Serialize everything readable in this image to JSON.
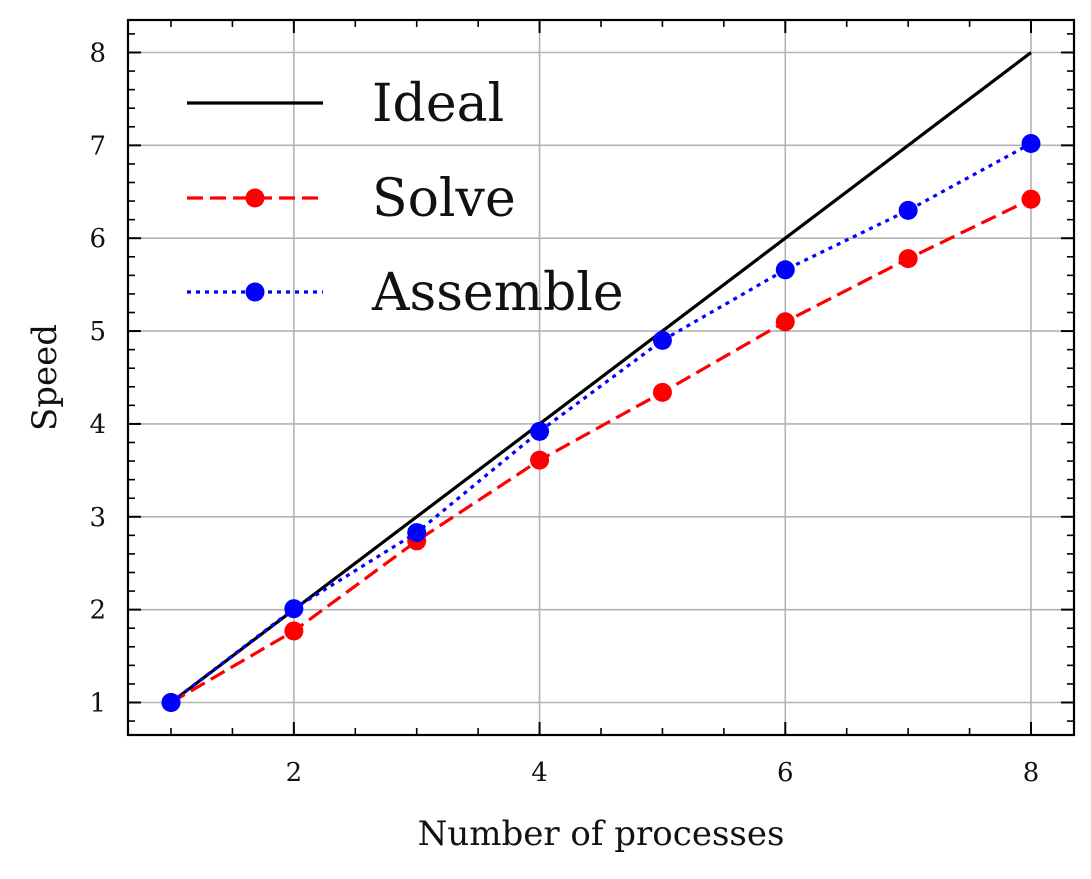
{
  "chart_data": {
    "type": "line",
    "title": "",
    "xlabel": "Number of processes",
    "ylabel": "Speed",
    "xlim": [
      0.65,
      8.35
    ],
    "ylim": [
      0.65,
      8.35
    ],
    "x_ticks": [
      2,
      4,
      6,
      8
    ],
    "y_ticks": [
      1,
      2,
      3,
      4,
      5,
      6,
      7,
      8
    ],
    "grid": true,
    "legend_position": "top-left",
    "series": [
      {
        "name": "Ideal",
        "color": "#000000",
        "line_style": "solid",
        "marker": "none",
        "x": [
          1,
          8
        ],
        "y": [
          1,
          8
        ]
      },
      {
        "name": "Solve",
        "color": "#ff0000",
        "line_style": "dashed",
        "marker": "circle",
        "x": [
          1,
          2,
          3,
          4,
          5,
          6,
          7,
          8
        ],
        "y": [
          1.0,
          1.77,
          2.74,
          3.61,
          4.34,
          5.1,
          5.78,
          6.42
        ]
      },
      {
        "name": "Assemble",
        "color": "#0000ff",
        "line_style": "dotted",
        "marker": "circle",
        "x": [
          1,
          2,
          3,
          4,
          5,
          6,
          7,
          8
        ],
        "y": [
          1.0,
          2.01,
          2.83,
          3.92,
          4.9,
          5.66,
          6.3,
          7.02
        ]
      }
    ]
  }
}
